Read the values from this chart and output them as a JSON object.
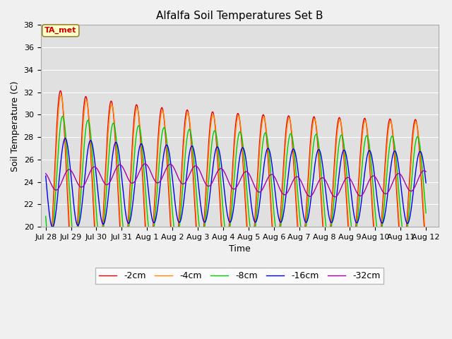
{
  "title": "Alfalfa Soil Temperatures Set B",
  "xlabel": "Time",
  "ylabel": "Soil Temperature (C)",
  "ylim": [
    20,
    38
  ],
  "xlim_days": 15.5,
  "fig_facecolor": "#f0f0f0",
  "plot_bg_color": "#e0e0e0",
  "grid_color": "white",
  "series_colors": {
    "-2cm": "#ee0000",
    "-4cm": "#ff8800",
    "-8cm": "#00cc00",
    "-16cm": "#0000ee",
    "-32cm": "#aa00aa"
  },
  "legend_labels": [
    "-2cm",
    "-4cm",
    "-8cm",
    "-16cm",
    "-32cm"
  ],
  "annotation_text": "TA_met",
  "x_tick_labels": [
    "Jul 28",
    "Jul 29",
    "Jul 30",
    "Jul 31",
    "Aug 1",
    "Aug 2",
    "Aug 3",
    "Aug 4",
    "Aug 5",
    "Aug 6",
    "Aug 7",
    "Aug 8",
    "Aug 9",
    "Aug 10",
    "Aug 11",
    "Aug 12"
  ],
  "x_tick_positions": [
    0,
    1,
    2,
    3,
    4,
    5,
    6,
    7,
    8,
    9,
    10,
    11,
    12,
    13,
    14,
    15
  ]
}
